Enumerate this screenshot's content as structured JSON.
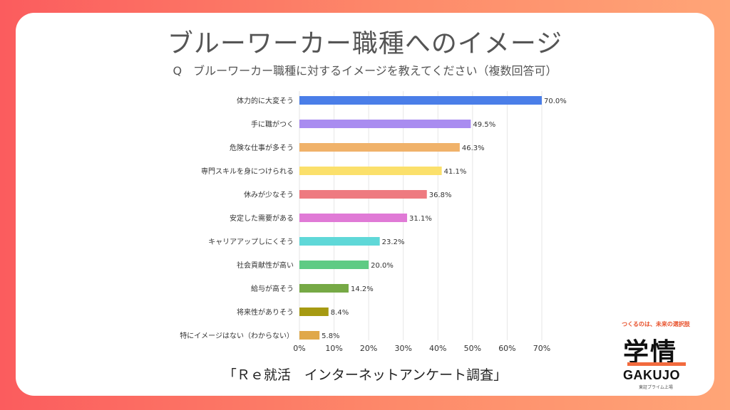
{
  "title": "ブルーワーカー職種へのイメージ",
  "subtitle": "Q　ブルーワーカー職種に対するイメージを教えてください（複数回答可）",
  "footer": "「Ｒｅ就活　インターネットアンケート調査」",
  "logo": {
    "tagline": "つくるのは、未来の選択肢",
    "mark": "学情",
    "name": "GAKUJO",
    "sub": "東証プライム上場"
  },
  "chart_data": {
    "type": "bar",
    "orientation": "horizontal",
    "categories": [
      "体力的に大変そう",
      "手に職がつく",
      "危険な仕事が多そう",
      "専門スキルを身につけられる",
      "休みが少なそう",
      "安定した需要がある",
      "キャリアアップしにくそう",
      "社会貢献性が高い",
      "給与が高そう",
      "将来性がありそう",
      "特にイメージはない（わからない）"
    ],
    "values": [
      70.0,
      49.5,
      46.3,
      41.1,
      36.8,
      31.1,
      23.2,
      20.0,
      14.2,
      8.4,
      5.8
    ],
    "value_labels": [
      "70.0%",
      "49.5%",
      "46.3%",
      "41.1%",
      "36.8%",
      "31.1%",
      "23.2%",
      "20.0%",
      "14.2%",
      "8.4%",
      "5.8%"
    ],
    "colors": [
      "#4a7ee8",
      "#a98cf0",
      "#f0b26a",
      "#fbe06b",
      "#ee7a80",
      "#e07ad6",
      "#5fd8d8",
      "#5ecb84",
      "#76a945",
      "#a69a12",
      "#e0a84a"
    ],
    "xlim": [
      0,
      70
    ],
    "xticks": [
      0,
      10,
      20,
      30,
      40,
      50,
      60,
      70
    ],
    "xtick_labels": [
      "0%",
      "10%",
      "20%",
      "30%",
      "40%",
      "50%",
      "60%",
      "70%"
    ],
    "grid": true,
    "gridline_color": "#e6e6e6"
  }
}
